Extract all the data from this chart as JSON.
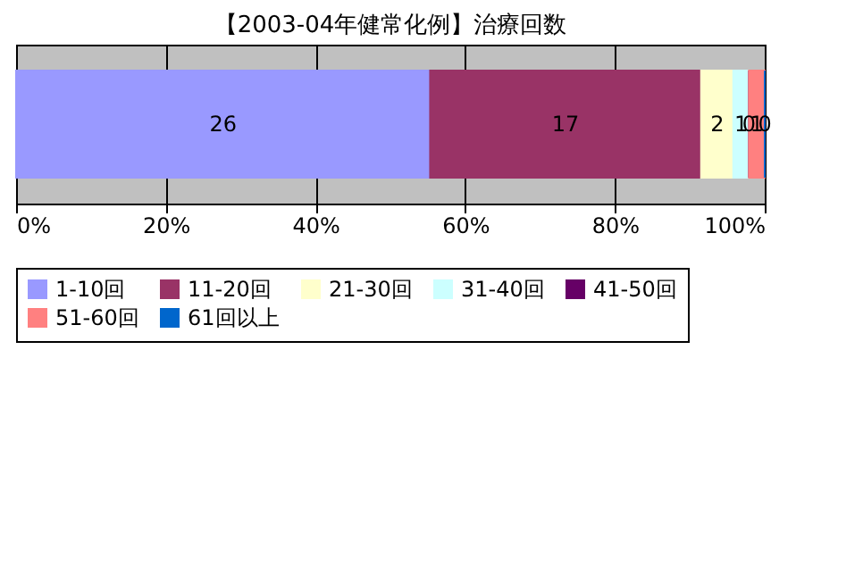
{
  "chart_data": {
    "type": "bar",
    "orientation": "horizontal",
    "stacked": true,
    "title": "【2003-04年健常化例】治療回数",
    "categories": [
      null
    ],
    "series": [
      {
        "name": "1-10回",
        "color": "#9999ff",
        "values": [
          55.3
        ]
      },
      {
        "name": "11-20回",
        "color": "#993366",
        "values": [
          36.2
        ]
      },
      {
        "name": "21-30回",
        "color": "#ffffcc",
        "values": [
          4.3
        ]
      },
      {
        "name": "31-40回",
        "color": "#ccffff",
        "values": [
          2.1
        ]
      },
      {
        "name": "41-50回",
        "color": "#660066",
        "values": [
          0
        ]
      },
      {
        "name": "51-60回",
        "color": "#ff8080",
        "values": [
          2.1
        ]
      },
      {
        "name": "61回以上",
        "color": "#0066cc",
        "values": [
          0
        ]
      }
    ],
    "annotations": [
      "26",
      "17",
      "2",
      "1",
      "0",
      "1",
      "0"
    ],
    "xlim": [
      0,
      100
    ],
    "xticks": [
      {
        "value": 0,
        "label": "0%"
      },
      {
        "value": 20,
        "label": "20%"
      },
      {
        "value": 40,
        "label": "40%"
      },
      {
        "value": 60,
        "label": "60%"
      },
      {
        "value": 80,
        "label": "80%"
      },
      {
        "value": 100,
        "label": "100%"
      }
    ],
    "grid": "x",
    "legend": "bottom"
  }
}
